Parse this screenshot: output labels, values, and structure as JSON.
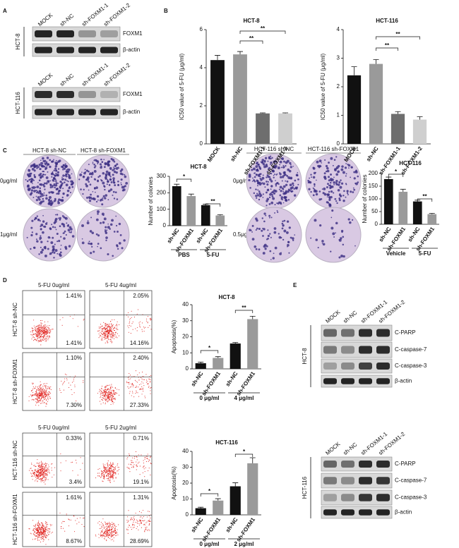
{
  "panel_labels": [
    "A",
    "B",
    "C",
    "D",
    "E"
  ],
  "blots_a": [
    {
      "cell_line": "HCT-8",
      "lanes": [
        "MOCK",
        "sh-NC",
        "sh-FOXM1-1",
        "sh-FOXM1-2"
      ],
      "bands": [
        "FOXM1",
        "β-actin"
      ]
    },
    {
      "cell_line": "HCT-116",
      "lanes": [
        "MOCK",
        "sh-NC",
        "sh-FOXM1-1",
        "sh-FOXM1-2"
      ],
      "bands": [
        "FOXM1",
        "β-actin"
      ]
    }
  ],
  "blots_e": [
    {
      "cell_line": "HCT-8",
      "lanes": [
        "MOCK",
        "sh-NC",
        "sh-FOXM1-1",
        "sh-FOXM1-2"
      ],
      "bands": [
        "C-PARP",
        "C-caspase-7",
        "C-caspase-3",
        "β-actin"
      ]
    },
    {
      "cell_line": "HCT-116",
      "lanes": [
        "MOCK",
        "sh-NC",
        "sh-FOXM1-1",
        "sh-FOXM1-2"
      ],
      "bands": [
        "C-PARP",
        "C-caspase-7",
        "C-caspase-3",
        "β-actin"
      ]
    }
  ],
  "colonies": [
    {
      "headers": [
        "HCT-8 sh-NC",
        "HCT-8 sh-FOXM1"
      ],
      "rows": [
        "0μg/ml",
        "1μg/ml"
      ]
    },
    {
      "headers": [
        "HCT-116 sh-NC",
        "HCT-116 sh-FOXM1"
      ],
      "rows": [
        "0μg/ml",
        "0.5μg/ml"
      ]
    }
  ],
  "flow": [
    {
      "columns": [
        "5-FU 0ug/ml",
        "5-FU 4ug/ml"
      ],
      "rows": [
        "HCT-8 sh-NC",
        "HCT-8 sh-FOXM1"
      ],
      "plots": [
        {
          "upper": "1.41%",
          "lower": "1.41%"
        },
        {
          "upper": "2.05%",
          "lower": "14.16%"
        },
        {
          "upper": "1.10%",
          "lower": "7.30%"
        },
        {
          "upper": "2.40%",
          "lower": "27.33%"
        }
      ]
    },
    {
      "columns": [
        "5-FU 0ug/ml",
        "5-FU 2ug/ml"
      ],
      "rows": [
        "HCT-116 sh-NC",
        "HCT-116 sh-FOXM1"
      ],
      "plots": [
        {
          "upper": "0.33%",
          "lower": "3.4%"
        },
        {
          "upper": "0.71%",
          "lower": "19.1%"
        },
        {
          "upper": "1.61%",
          "lower": "8.67%"
        },
        {
          "upper": "1.31%",
          "lower": "28.69%"
        }
      ]
    }
  ],
  "chart_data": [
    {
      "type": "bar",
      "title": "HCT-8",
      "ylabel": "IC50 value of 5-FU (μg/ml)",
      "categories": [
        "MOCK",
        "sh-NC",
        "sh-FOXM1-1",
        "sh-FOXM1-2"
      ],
      "values": [
        4.4,
        4.7,
        1.6,
        1.6
      ],
      "errors": [
        0.25,
        0.15,
        0.03,
        0.03
      ],
      "colors": [
        "#111111",
        "#9a9a9a",
        "#6e6e6e",
        "#cfcfcf"
      ],
      "ylim": [
        0,
        6
      ],
      "yticks": [
        0,
        2,
        4,
        6
      ],
      "annotations": [
        "**",
        "**"
      ]
    },
    {
      "type": "bar",
      "title": "HCT-116",
      "ylabel": "IC50 value of 5-FU (μg/ml)",
      "categories": [
        "MOCK",
        "sh-NC",
        "sh-FOXM1-1",
        "sh-FOXM1-2"
      ],
      "values": [
        2.4,
        2.8,
        1.05,
        0.85
      ],
      "errors": [
        0.3,
        0.15,
        0.08,
        0.1
      ],
      "colors": [
        "#111111",
        "#9a9a9a",
        "#6e6e6e",
        "#cfcfcf"
      ],
      "ylim": [
        0,
        4
      ],
      "yticks": [
        0,
        1,
        2,
        3,
        4
      ],
      "annotations": [
        "**",
        "**"
      ]
    },
    {
      "type": "bar",
      "title": "HCT-8",
      "ylabel": "Number of colonies",
      "categories": [
        "sh-NC",
        "sh-FOXM1",
        "sh-NC",
        "sh-FOXM1"
      ],
      "groups": [
        "PBS",
        "5-FU"
      ],
      "values": [
        240,
        180,
        125,
        62
      ],
      "errors": [
        12,
        12,
        6,
        5
      ],
      "colors": [
        "#111111",
        "#9a9a9a",
        "#111111",
        "#9a9a9a"
      ],
      "ylim": [
        0,
        300
      ],
      "yticks": [
        0,
        100,
        200,
        300
      ],
      "annotations": [
        "*",
        "**"
      ]
    },
    {
      "type": "bar",
      "title": "HCT-116",
      "ylabel": "Number of colonies",
      "categories": [
        "sh-NC",
        "sh-FOXM1",
        "sh-NC",
        "sh-FOXM1"
      ],
      "groups": [
        "Vehicle",
        "5-FU"
      ],
      "values": [
        178,
        128,
        90,
        40
      ],
      "errors": [
        8,
        10,
        5,
        3
      ],
      "colors": [
        "#111111",
        "#9a9a9a",
        "#111111",
        "#9a9a9a"
      ],
      "ylim": [
        0,
        200
      ],
      "yticks": [
        0,
        50,
        100,
        150,
        200
      ],
      "annotations": [
        "*",
        "**"
      ]
    },
    {
      "type": "bar",
      "title": "HCT-8",
      "ylabel": "Apoptosis(%)",
      "categories": [
        "sh-NC",
        "sh-FOXM1",
        "sh-NC",
        "sh-FOXM1"
      ],
      "groups": [
        "0 μg/ml",
        "4 μg/ml"
      ],
      "values": [
        3.5,
        6.8,
        15.8,
        31
      ],
      "errors": [
        0.7,
        0.8,
        0.6,
        1.8
      ],
      "colors": [
        "#111111",
        "#9a9a9a",
        "#111111",
        "#9a9a9a"
      ],
      "ylim": [
        0,
        40
      ],
      "yticks": [
        0,
        10,
        20,
        30,
        40
      ],
      "annotations": [
        "*",
        "**"
      ]
    },
    {
      "type": "bar",
      "title": "HCT-116",
      "ylabel": "Apoptosis(%)",
      "categories": [
        "sh-NC",
        "sh-FOXM1",
        "sh-NC",
        "sh-FOXM1"
      ],
      "groups": [
        "0 μg/ml",
        "2 μg/ml"
      ],
      "values": [
        4.2,
        9,
        18,
        32.5
      ],
      "errors": [
        0.6,
        1.2,
        2.2,
        3.5
      ],
      "colors": [
        "#111111",
        "#9a9a9a",
        "#111111",
        "#9a9a9a"
      ],
      "ylim": [
        0,
        40
      ],
      "yticks": [
        0,
        10,
        20,
        30,
        40
      ],
      "annotations": [
        "*",
        "*"
      ]
    }
  ]
}
